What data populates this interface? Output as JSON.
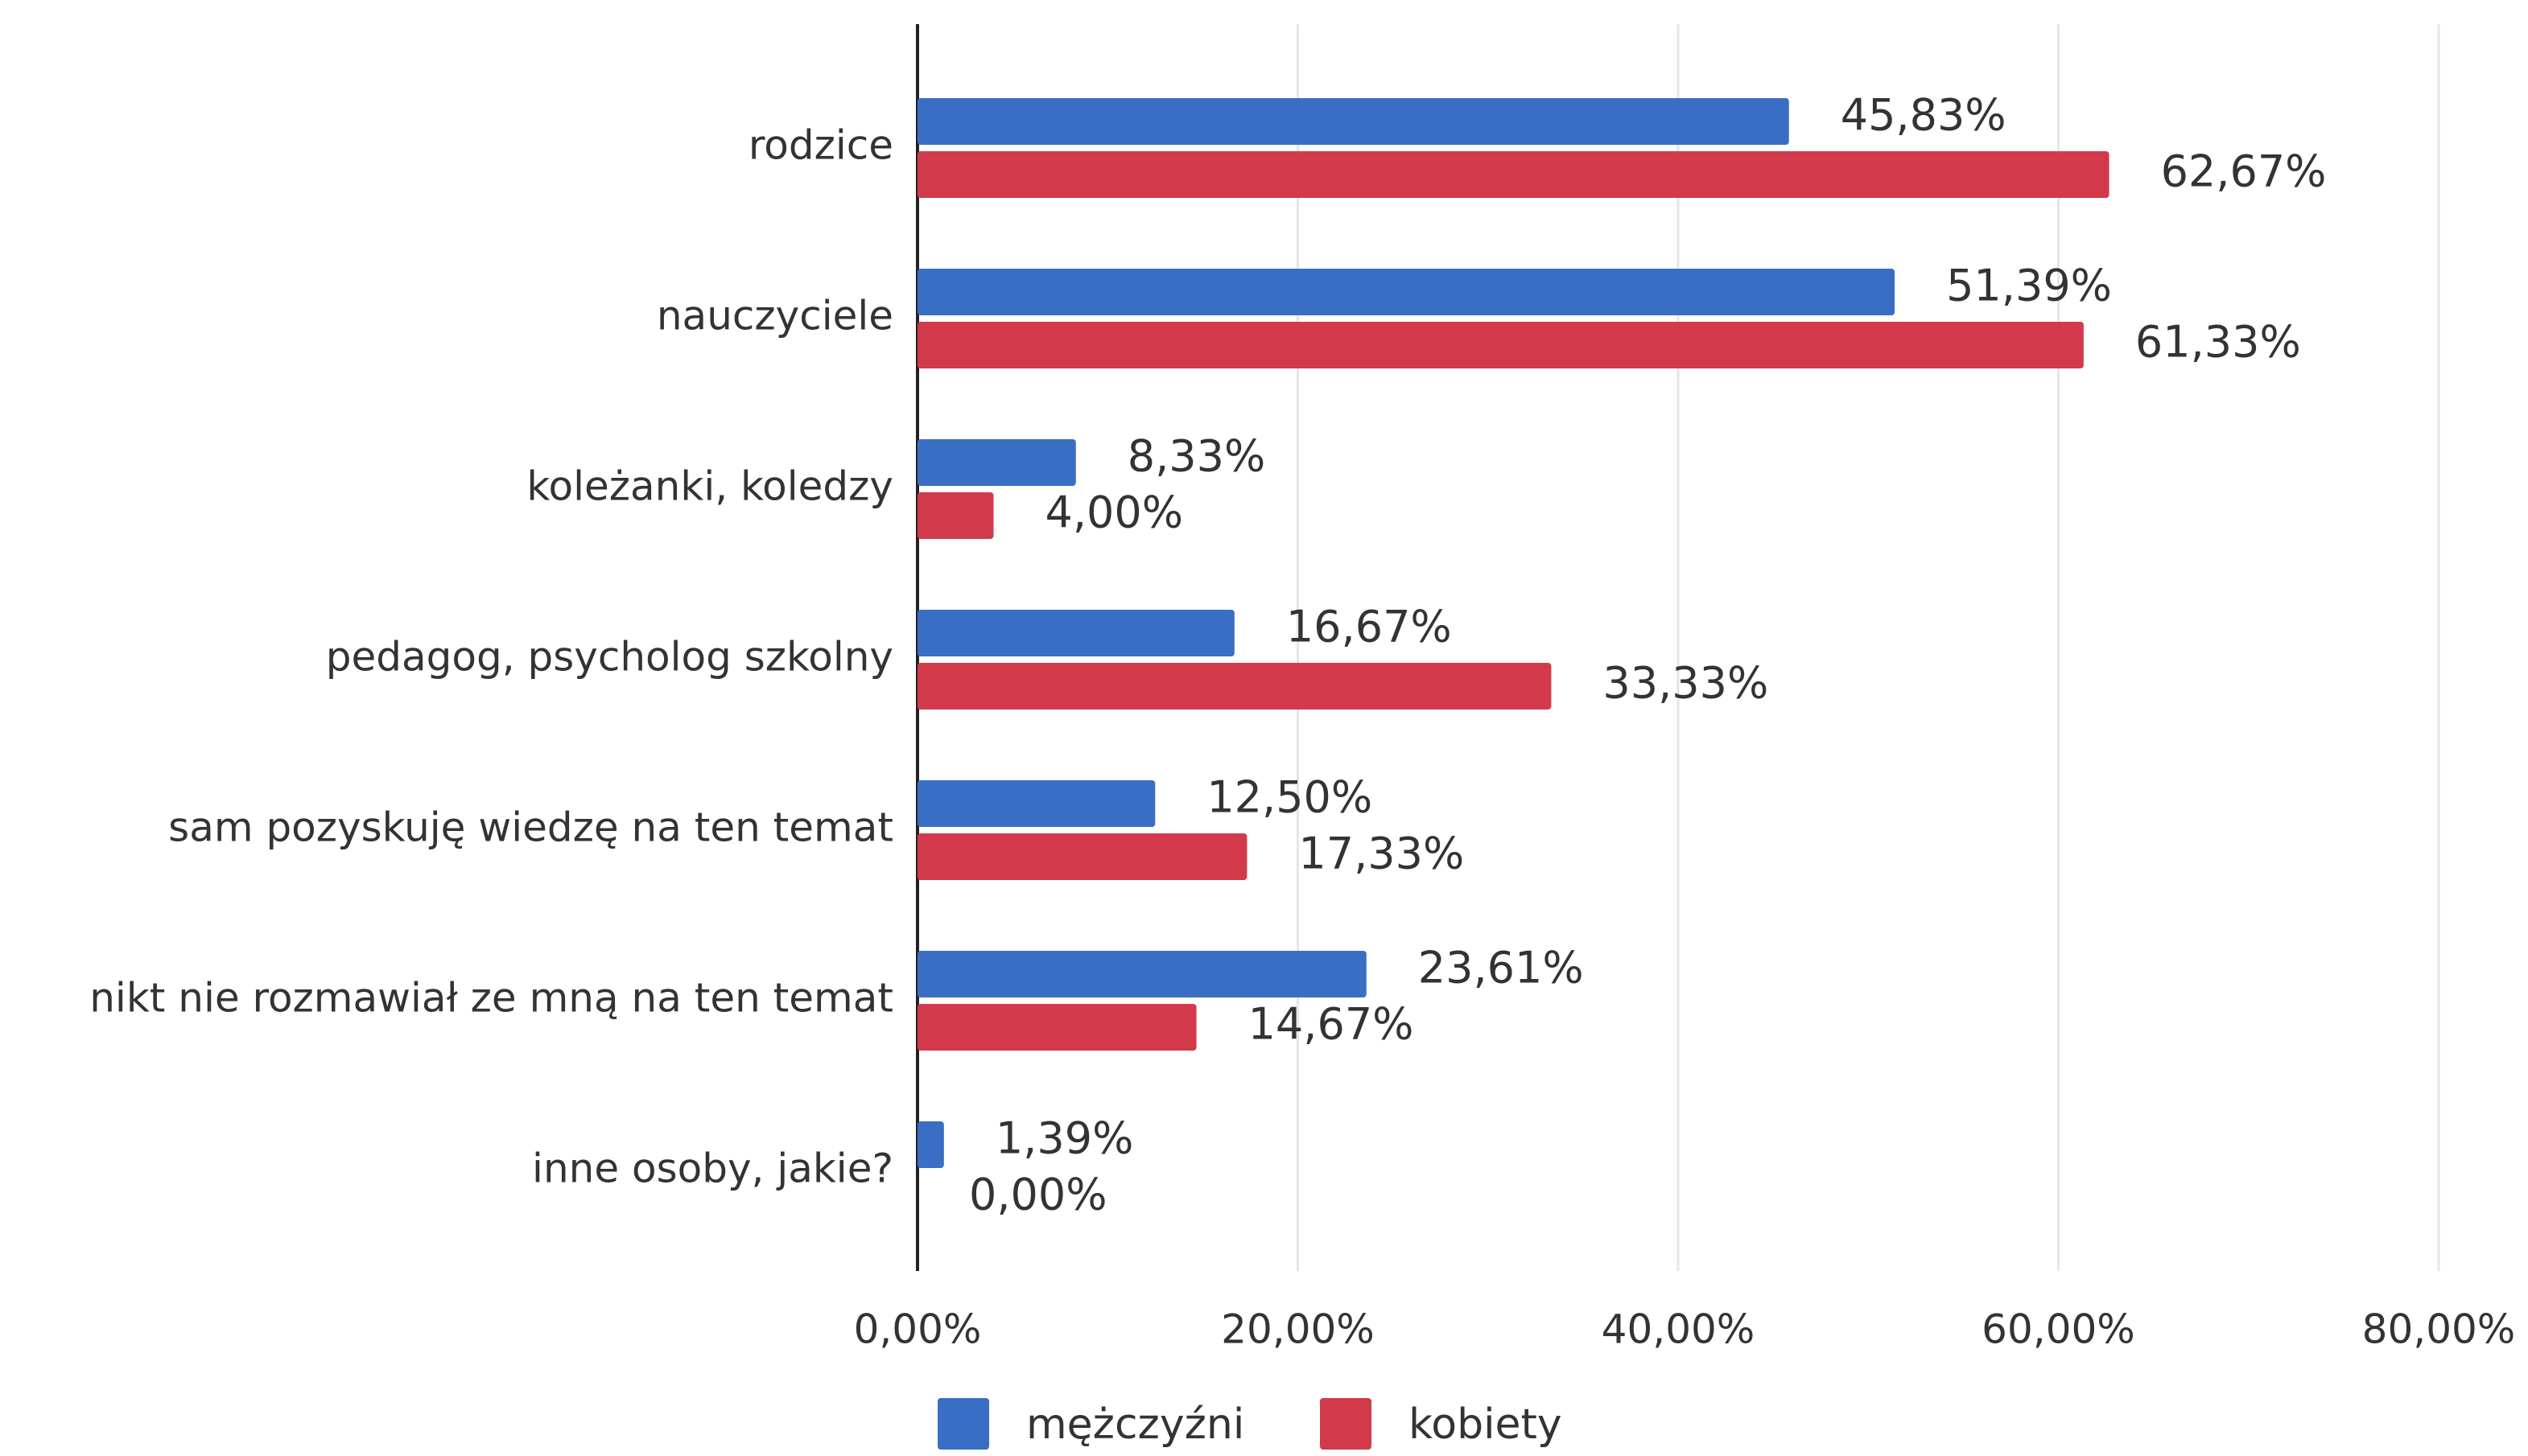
{
  "chart_data": {
    "type": "hbar",
    "categories": [
      "rodzice",
      "nauczyciele",
      "koleżanki, koledzy",
      "pedagog, psycholog szkolny",
      "sam pozyskuję wiedzę na ten temat",
      "nikt nie rozmawiał ze mną na ten temat",
      "inne osoby, jakie?"
    ],
    "series": [
      {
        "name": "mężczyźni",
        "color": "#3a6ec4",
        "values": [
          45.83,
          51.39,
          8.33,
          16.67,
          12.5,
          23.61,
          1.39
        ],
        "value_labels": [
          "45,83%",
          "51,39%",
          "8,33%",
          "16,67%",
          "12,50%",
          "23,61%",
          "1,39%"
        ]
      },
      {
        "name": "kobiety",
        "color": "#d23a4b",
        "values": [
          62.67,
          61.33,
          4.0,
          33.33,
          17.33,
          14.67,
          0.0
        ],
        "value_labels": [
          "62,67%",
          "61,33%",
          "4,00%",
          "33,33%",
          "17,33%",
          "14,67%",
          "0,00%"
        ]
      }
    ],
    "xlim": [
      0,
      80
    ],
    "xticks": [
      {
        "value": 0,
        "label": "0,00%"
      },
      {
        "value": 20,
        "label": "20,00%"
      },
      {
        "value": 40,
        "label": "40,00%"
      },
      {
        "value": 60,
        "label": "60,00%"
      },
      {
        "value": 80,
        "label": "80,00%"
      }
    ],
    "grid": true,
    "legend": "bottom"
  }
}
